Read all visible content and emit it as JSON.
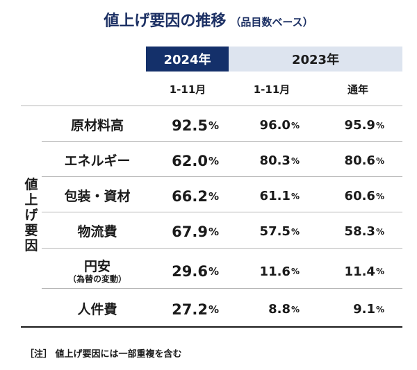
{
  "title": {
    "main": "値上げ要因の推移",
    "sub": "（品目数ベース）"
  },
  "header": {
    "year_2024": "2024年",
    "year_2023": "2023年",
    "period_2024": "1-11月",
    "period_2023_nov": "1-11月",
    "period_2023_year": "通年"
  },
  "side_label": [
    "値",
    "上",
    "げ",
    "要",
    "因"
  ],
  "percent_sign": "%",
  "rows": [
    {
      "factor": "原材料高",
      "note": "",
      "v2024": "92.5",
      "v2023_nov": "96.0",
      "v2023_year": "95.9"
    },
    {
      "factor": "エネルギー",
      "note": "",
      "v2024": "62.0",
      "v2023_nov": "80.3",
      "v2023_year": "80.6"
    },
    {
      "factor": "包装・資材",
      "note": "",
      "v2024": "66.2",
      "v2023_nov": "61.1",
      "v2023_year": "60.6"
    },
    {
      "factor": "物流費",
      "note": "",
      "v2024": "67.9",
      "v2023_nov": "57.5",
      "v2023_year": "58.3"
    },
    {
      "factor": "円安",
      "note": "（為替の変動）",
      "v2024": "29.6",
      "v2023_nov": "11.6",
      "v2023_year": "11.4"
    },
    {
      "factor": "人件費",
      "note": "",
      "v2024": "27.2",
      "v2023_nov": "8.8",
      "v2023_year": "9.1"
    }
  ],
  "footnote": "［注］ 値上げ要因には一部重複を含む"
}
